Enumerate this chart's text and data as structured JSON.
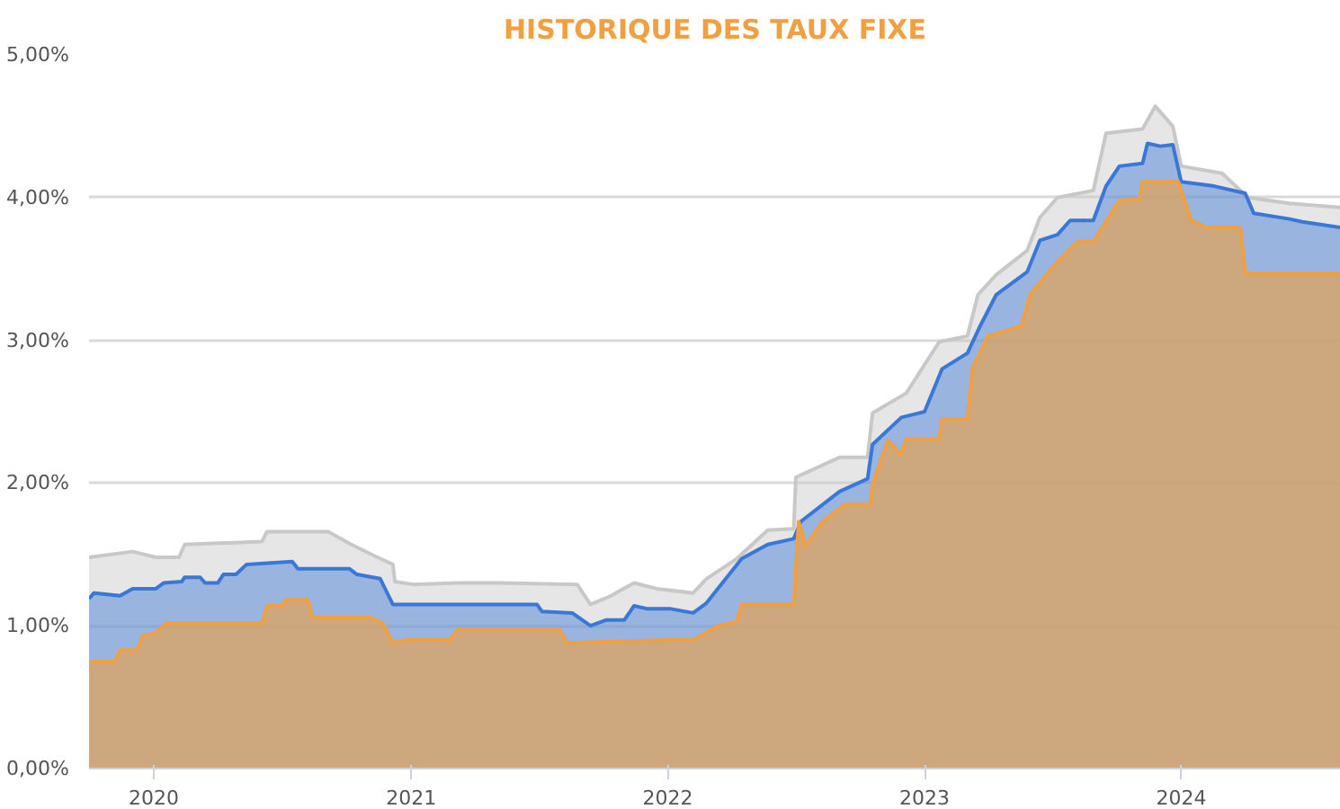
{
  "chart_data": {
    "type": "area",
    "title": "HISTORIQUE DES TAUX FIXE",
    "xlim": [
      "2019-10-01",
      "2024-08-15"
    ],
    "xticks": [
      "2020",
      "2021",
      "2022",
      "2023",
      "2024"
    ],
    "ylim": [
      0,
      5
    ],
    "yticks": [
      {
        "value": 0,
        "label": "0,00%"
      },
      {
        "value": 1,
        "label": "1,00%"
      },
      {
        "value": 2,
        "label": "2,00%"
      },
      {
        "value": 3,
        "label": "3,00%"
      },
      {
        "value": 4,
        "label": "4,00%"
      },
      {
        "value": 5,
        "label": "5,00%"
      }
    ],
    "grid": "y",
    "marker": "none",
    "line_style": "solid",
    "series": [
      {
        "color": "#c8c8c8",
        "x": [
          "2019-10-01",
          "2019-12-02",
          "2020-01-04",
          "2020-02-06",
          "2020-02-14",
          "2020-06-03",
          "2020-06-10",
          "2020-09-05",
          "2020-10-08",
          "2020-11-14",
          "2020-12-06",
          "2020-12-09",
          "2021-01-04",
          "2021-03-07",
          "2021-05-08",
          "2021-08-25",
          "2021-09-13",
          "2021-10-08",
          "2021-11-14",
          "2021-12-16",
          "2022-02-06",
          "2022-02-25",
          "2022-04-09",
          "2022-05-23",
          "2022-06-29",
          "2022-07-02",
          "2022-09-02",
          "2022-10-12",
          "2022-10-19",
          "2022-12-06",
          "2023-01-22",
          "2023-03-03",
          "2023-03-18",
          "2023-04-13",
          "2023-05-27",
          "2023-06-14",
          "2023-07-09",
          "2023-08-29",
          "2023-09-16",
          "2023-11-07",
          "2023-11-25",
          "2023-12-20",
          "2024-01-01",
          "2024-02-28",
          "2024-04-05",
          "2024-06-03",
          "2024-08-15"
        ],
        "values": [
          1.48,
          1.52,
          1.48,
          1.48,
          1.57,
          1.59,
          1.66,
          1.66,
          1.57,
          1.48,
          1.43,
          1.31,
          1.29,
          1.3,
          1.3,
          1.29,
          1.15,
          1.2,
          1.3,
          1.26,
          1.23,
          1.33,
          1.47,
          1.67,
          1.68,
          2.04,
          2.18,
          2.18,
          2.49,
          2.63,
          2.99,
          3.03,
          3.32,
          3.46,
          3.63,
          3.86,
          4.0,
          4.05,
          4.45,
          4.48,
          4.64,
          4.5,
          4.22,
          4.17,
          4.0,
          3.96,
          3.93
        ]
      },
      {
        "color": "#3a78d8",
        "x": [
          "2019-10-01",
          "2019-10-08",
          "2019-11-14",
          "2019-12-02",
          "2020-01-04",
          "2020-01-15",
          "2020-02-10",
          "2020-02-14",
          "2020-03-07",
          "2020-03-14",
          "2020-04-01",
          "2020-04-09",
          "2020-04-27",
          "2020-05-12",
          "2020-07-16",
          "2020-07-24",
          "2020-10-05",
          "2020-10-16",
          "2020-11-18",
          "2020-12-06",
          "2021-06-29",
          "2021-07-06",
          "2021-08-18",
          "2021-09-13",
          "2021-10-05",
          "2021-10-31",
          "2021-11-14",
          "2021-12-02",
          "2022-01-04",
          "2022-02-06",
          "2022-02-25",
          "2022-04-16",
          "2022-05-23",
          "2022-06-29",
          "2022-07-09",
          "2022-09-02",
          "2022-10-12",
          "2022-10-19",
          "2022-11-29",
          "2023-01-01",
          "2023-01-26",
          "2023-03-03",
          "2023-03-21",
          "2023-04-13",
          "2023-05-27",
          "2023-06-14",
          "2023-07-09",
          "2023-07-27",
          "2023-08-29",
          "2023-09-16",
          "2023-10-05",
          "2023-11-07",
          "2023-11-14",
          "2023-12-02",
          "2023-12-20",
          "2024-01-01",
          "2024-02-17",
          "2024-04-01",
          "2024-04-13",
          "2024-06-03",
          "2024-06-21",
          "2024-08-15"
        ],
        "values": [
          1.19,
          1.23,
          1.21,
          1.26,
          1.26,
          1.3,
          1.31,
          1.34,
          1.34,
          1.3,
          1.3,
          1.36,
          1.36,
          1.43,
          1.45,
          1.4,
          1.4,
          1.36,
          1.33,
          1.15,
          1.15,
          1.1,
          1.09,
          1.0,
          1.04,
          1.04,
          1.14,
          1.12,
          1.12,
          1.09,
          1.16,
          1.47,
          1.57,
          1.61,
          1.73,
          1.94,
          2.03,
          2.27,
          2.46,
          2.5,
          2.8,
          2.91,
          3.1,
          3.32,
          3.48,
          3.7,
          3.74,
          3.84,
          3.84,
          4.08,
          4.22,
          4.24,
          4.38,
          4.36,
          4.37,
          4.11,
          4.08,
          4.03,
          3.89,
          3.85,
          3.83,
          3.79
        ]
      },
      {
        "color": "#f0a040",
        "x": [
          "2019-10-01",
          "2019-10-08",
          "2019-11-07",
          "2019-11-14",
          "2019-12-09",
          "2019-12-16",
          "2020-01-04",
          "2020-01-19",
          "2020-06-03",
          "2020-06-10",
          "2020-07-02",
          "2020-07-06",
          "2020-08-07",
          "2020-08-14",
          "2020-11-03",
          "2020-11-21",
          "2020-12-06",
          "2020-12-24",
          "2021-02-25",
          "2021-03-07",
          "2021-07-31",
          "2021-08-11",
          "2022-01-04",
          "2022-02-06",
          "2022-03-14",
          "2022-04-09",
          "2022-04-16",
          "2022-06-29",
          "2022-07-06",
          "2022-07-16",
          "2022-08-07",
          "2022-09-09",
          "2022-10-16",
          "2022-10-19",
          "2022-11-10",
          "2022-11-29",
          "2022-12-06",
          "2023-01-22",
          "2023-01-26",
          "2023-03-03",
          "2023-03-10",
          "2023-04-01",
          "2023-05-19",
          "2023-05-31",
          "2023-07-09",
          "2023-08-07",
          "2023-08-29",
          "2023-10-05",
          "2023-11-03",
          "2023-11-07",
          "2023-12-28",
          "2024-01-15",
          "2024-02-06",
          "2024-03-25",
          "2024-04-01",
          "2024-08-15"
        ],
        "values": [
          0.74,
          0.75,
          0.75,
          0.83,
          0.83,
          0.93,
          0.95,
          1.02,
          1.02,
          1.14,
          1.14,
          1.18,
          1.18,
          1.06,
          1.06,
          1.02,
          0.88,
          0.9,
          0.9,
          0.97,
          0.97,
          0.88,
          0.9,
          0.9,
          1.0,
          1.03,
          1.15,
          1.15,
          1.73,
          1.56,
          1.72,
          1.85,
          1.85,
          1.99,
          2.3,
          2.2,
          2.31,
          2.31,
          2.45,
          2.45,
          2.8,
          3.03,
          3.1,
          3.32,
          3.55,
          3.69,
          3.69,
          3.98,
          3.99,
          4.11,
          4.11,
          3.84,
          3.79,
          3.79,
          3.47,
          3.47
        ]
      }
    ]
  }
}
